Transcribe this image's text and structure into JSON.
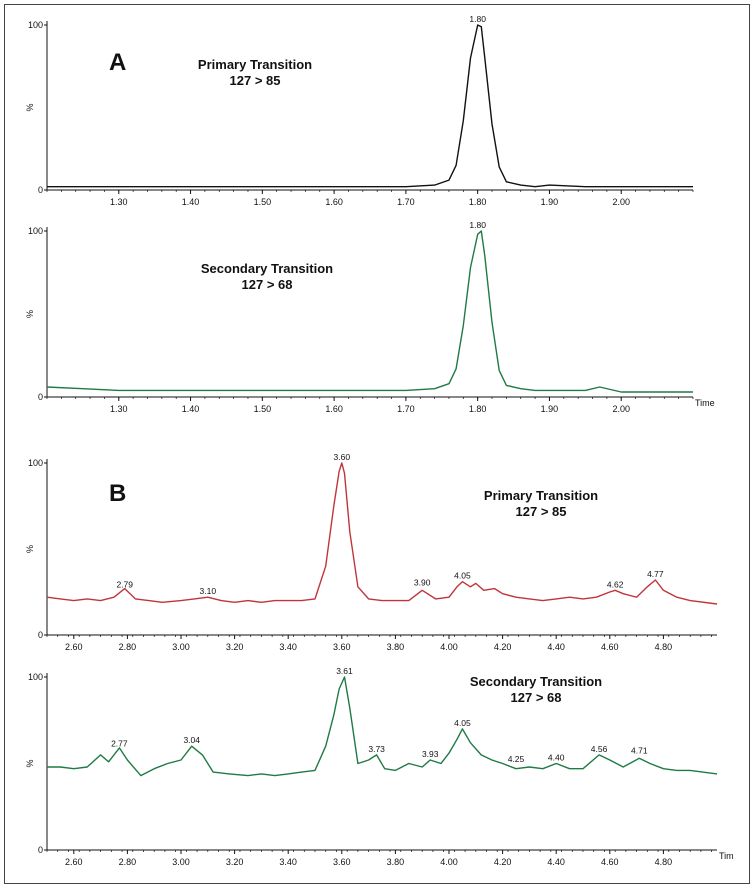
{
  "panels": [
    {
      "letter": "A"
    },
    {
      "letter": "B"
    }
  ],
  "chart_data": [
    {
      "type": "line",
      "panel": "A",
      "title": "Primary Transition",
      "subtitle": "127 > 85",
      "ylabel": "%",
      "xlabel": "",
      "xlim": [
        1.2,
        2.1
      ],
      "ylim": [
        0,
        100
      ],
      "color": "#111111",
      "xticks": [
        "1.30",
        "1.40",
        "1.50",
        "1.60",
        "1.70",
        "1.80",
        "1.90",
        "2.00"
      ],
      "yticks": [
        "0",
        "100"
      ],
      "peak_labels": [
        {
          "x": 1.8,
          "y": 100,
          "label": "1.80"
        }
      ],
      "x": [
        1.2,
        1.25,
        1.3,
        1.35,
        1.4,
        1.45,
        1.5,
        1.55,
        1.6,
        1.65,
        1.7,
        1.74,
        1.76,
        1.77,
        1.78,
        1.79,
        1.8,
        1.805,
        1.81,
        1.82,
        1.83,
        1.84,
        1.86,
        1.88,
        1.9,
        1.95,
        2.0,
        2.05,
        2.1
      ],
      "y": [
        2,
        2,
        2,
        2,
        2,
        2,
        2,
        2,
        2,
        2,
        2,
        3,
        6,
        15,
        42,
        80,
        100,
        99,
        80,
        40,
        14,
        5,
        3,
        2,
        3,
        2,
        2,
        2,
        2
      ]
    },
    {
      "type": "line",
      "panel": "A",
      "title": "Secondary Transition",
      "subtitle": "127 > 68",
      "ylabel": "%",
      "xlabel": "Time",
      "xlim": [
        1.2,
        2.1
      ],
      "ylim": [
        0,
        100
      ],
      "color": "#1f7a45",
      "xticks": [
        "1.30",
        "1.40",
        "1.50",
        "1.60",
        "1.70",
        "1.80",
        "1.90",
        "2.00"
      ],
      "yticks": [
        "0",
        "100"
      ],
      "peak_labels": [
        {
          "x": 1.8,
          "y": 100,
          "label": "1.80"
        }
      ],
      "x": [
        1.2,
        1.25,
        1.3,
        1.35,
        1.4,
        1.45,
        1.5,
        1.55,
        1.6,
        1.65,
        1.7,
        1.74,
        1.76,
        1.77,
        1.78,
        1.79,
        1.8,
        1.805,
        1.81,
        1.82,
        1.83,
        1.84,
        1.86,
        1.88,
        1.9,
        1.95,
        1.97,
        2.0,
        2.05,
        2.1
      ],
      "y": [
        6,
        5,
        4,
        4,
        4,
        4,
        4,
        4,
        4,
        4,
        4,
        5,
        8,
        17,
        43,
        78,
        98,
        100,
        85,
        45,
        16,
        7,
        5,
        4,
        4,
        4,
        6,
        3,
        3,
        3
      ]
    },
    {
      "type": "line",
      "panel": "B",
      "title": "Primary Transition",
      "subtitle": "127 > 85",
      "ylabel": "%",
      "xlabel": "",
      "xlim": [
        2.5,
        5.0
      ],
      "ylim": [
        0,
        100
      ],
      "color": "#c0353a",
      "xticks": [
        "2.60",
        "2.80",
        "3.00",
        "3.20",
        "3.40",
        "3.60",
        "3.80",
        "4.00",
        "4.20",
        "4.40",
        "4.60",
        "4.80"
      ],
      "yticks": [
        "0",
        "100"
      ],
      "peak_labels": [
        {
          "x": 2.79,
          "y": 26,
          "label": "2.79"
        },
        {
          "x": 3.1,
          "y": 22,
          "label": "3.10"
        },
        {
          "x": 3.6,
          "y": 100,
          "label": "3.60"
        },
        {
          "x": 3.9,
          "y": 27,
          "label": "3.90"
        },
        {
          "x": 4.05,
          "y": 31,
          "label": "4.05"
        },
        {
          "x": 4.62,
          "y": 26,
          "label": "4.62"
        },
        {
          "x": 4.77,
          "y": 32,
          "label": "4.77"
        }
      ],
      "x": [
        2.5,
        2.55,
        2.6,
        2.65,
        2.7,
        2.75,
        2.79,
        2.83,
        2.88,
        2.93,
        3.0,
        3.05,
        3.1,
        3.15,
        3.2,
        3.25,
        3.3,
        3.35,
        3.4,
        3.45,
        3.5,
        3.54,
        3.57,
        3.59,
        3.6,
        3.61,
        3.63,
        3.66,
        3.7,
        3.75,
        3.8,
        3.85,
        3.9,
        3.95,
        4.0,
        4.03,
        4.05,
        4.08,
        4.1,
        4.13,
        4.17,
        4.2,
        4.25,
        4.3,
        4.35,
        4.4,
        4.45,
        4.5,
        4.55,
        4.6,
        4.62,
        4.65,
        4.7,
        4.74,
        4.77,
        4.8,
        4.85,
        4.9,
        5.0
      ],
      "y": [
        22,
        21,
        20,
        21,
        20,
        22,
        27,
        21,
        20,
        19,
        20,
        21,
        22,
        20,
        19,
        20,
        19,
        20,
        20,
        20,
        21,
        40,
        75,
        95,
        100,
        94,
        60,
        28,
        21,
        20,
        20,
        20,
        26,
        21,
        22,
        28,
        31,
        28,
        30,
        26,
        27,
        24,
        22,
        21,
        20,
        21,
        22,
        21,
        22,
        25,
        26,
        24,
        22,
        28,
        32,
        26,
        22,
        20,
        18
      ]
    },
    {
      "type": "line",
      "panel": "B",
      "title": "Secondary Transition",
      "subtitle": "127 > 68",
      "ylabel": "%",
      "xlabel": "Tim",
      "xlim": [
        2.5,
        5.0
      ],
      "ylim": [
        0,
        100
      ],
      "color": "#1f7a45",
      "xticks": [
        "2.60",
        "2.80",
        "3.00",
        "3.20",
        "3.40",
        "3.60",
        "3.80",
        "4.00",
        "4.20",
        "4.40",
        "4.60",
        "4.80"
      ],
      "yticks": [
        "0",
        "100"
      ],
      "peak_labels": [
        {
          "x": 2.77,
          "y": 58,
          "label": "2.77"
        },
        {
          "x": 3.04,
          "y": 60,
          "label": "3.04"
        },
        {
          "x": 3.61,
          "y": 100,
          "label": "3.61"
        },
        {
          "x": 3.73,
          "y": 55,
          "label": "3.73"
        },
        {
          "x": 3.93,
          "y": 52,
          "label": "3.93"
        },
        {
          "x": 4.05,
          "y": 70,
          "label": "4.05"
        },
        {
          "x": 4.25,
          "y": 49,
          "label": "4.25"
        },
        {
          "x": 4.4,
          "y": 50,
          "label": "4.40"
        },
        {
          "x": 4.56,
          "y": 55,
          "label": "4.56"
        },
        {
          "x": 4.71,
          "y": 54,
          "label": "4.71"
        }
      ],
      "x": [
        2.5,
        2.55,
        2.6,
        2.65,
        2.7,
        2.73,
        2.77,
        2.8,
        2.85,
        2.9,
        2.95,
        3.0,
        3.04,
        3.08,
        3.12,
        3.18,
        3.25,
        3.3,
        3.35,
        3.4,
        3.45,
        3.5,
        3.54,
        3.57,
        3.59,
        3.61,
        3.63,
        3.66,
        3.7,
        3.73,
        3.76,
        3.8,
        3.85,
        3.9,
        3.93,
        3.97,
        4.0,
        4.03,
        4.05,
        4.08,
        4.12,
        4.16,
        4.2,
        4.25,
        4.3,
        4.35,
        4.4,
        4.45,
        4.5,
        4.56,
        4.6,
        4.65,
        4.71,
        4.75,
        4.8,
        4.85,
        4.9,
        5.0
      ],
      "y": [
        48,
        48,
        47,
        48,
        55,
        51,
        59,
        52,
        43,
        47,
        50,
        52,
        60,
        55,
        45,
        44,
        43,
        44,
        43,
        44,
        45,
        46,
        60,
        78,
        93,
        100,
        82,
        50,
        52,
        55,
        47,
        46,
        50,
        48,
        52,
        50,
        56,
        64,
        70,
        62,
        55,
        52,
        50,
        47,
        48,
        47,
        50,
        47,
        47,
        55,
        52,
        48,
        53,
        50,
        47,
        46,
        46,
        44
      ]
    }
  ]
}
